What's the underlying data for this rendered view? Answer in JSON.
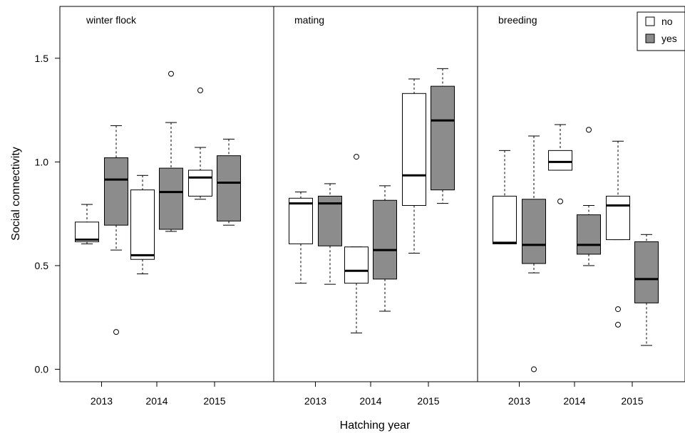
{
  "chart_data": {
    "type": "box",
    "xlabel": "Hatching year",
    "ylabel": "Social connectivity",
    "ylim": [
      -0.06,
      1.75
    ],
    "yticks": [
      "0.0",
      "0.5",
      "1.0",
      "1.5"
    ],
    "years": [
      "2013",
      "2014",
      "2015"
    ],
    "legend": {
      "position": "top-right",
      "items": [
        {
          "label": "no",
          "color": "#ffffff"
        },
        {
          "label": "yes",
          "color": "#8c8c8c"
        }
      ]
    },
    "panels": [
      {
        "label": "winter flock",
        "boxes": [
          {
            "year": "2013",
            "group": "no",
            "whisker_low": 0.605,
            "q1": 0.615,
            "median": 0.625,
            "q3": 0.71,
            "whisker_high": 0.795,
            "outliers": []
          },
          {
            "year": "2013",
            "group": "yes",
            "whisker_low": 0.575,
            "q1": 0.695,
            "median": 0.915,
            "q3": 1.02,
            "whisker_high": 1.175,
            "outliers": [
              0.18
            ]
          },
          {
            "year": "2014",
            "group": "no",
            "whisker_low": 0.46,
            "q1": 0.53,
            "median": 0.55,
            "q3": 0.865,
            "whisker_high": 0.935,
            "outliers": []
          },
          {
            "year": "2014",
            "group": "yes",
            "whisker_low": 0.665,
            "q1": 0.675,
            "median": 0.855,
            "q3": 0.97,
            "whisker_high": 1.19,
            "outliers": [
              1.425
            ]
          },
          {
            "year": "2015",
            "group": "no",
            "whisker_low": 0.82,
            "q1": 0.835,
            "median": 0.925,
            "q3": 0.96,
            "whisker_high": 1.07,
            "outliers": [
              1.345
            ]
          },
          {
            "year": "2015",
            "group": "yes",
            "whisker_low": 0.695,
            "q1": 0.715,
            "median": 0.9,
            "q3": 1.03,
            "whisker_high": 1.11,
            "outliers": []
          }
        ]
      },
      {
        "label": "mating",
        "boxes": [
          {
            "year": "2013",
            "group": "no",
            "whisker_low": 0.415,
            "q1": 0.605,
            "median": 0.8,
            "q3": 0.825,
            "whisker_high": 0.855,
            "outliers": []
          },
          {
            "year": "2013",
            "group": "yes",
            "whisker_low": 0.41,
            "q1": 0.595,
            "median": 0.8,
            "q3": 0.835,
            "whisker_high": 0.895,
            "outliers": []
          },
          {
            "year": "2014",
            "group": "no",
            "whisker_low": 0.175,
            "q1": 0.415,
            "median": 0.475,
            "q3": 0.59,
            "whisker_high": 0.59,
            "outliers": [
              1.025
            ]
          },
          {
            "year": "2014",
            "group": "yes",
            "whisker_low": 0.28,
            "q1": 0.435,
            "median": 0.575,
            "q3": 0.815,
            "whisker_high": 0.885,
            "outliers": []
          },
          {
            "year": "2015",
            "group": "no",
            "whisker_low": 0.56,
            "q1": 0.79,
            "median": 0.935,
            "q3": 1.33,
            "whisker_high": 1.4,
            "outliers": []
          },
          {
            "year": "2015",
            "group": "yes",
            "whisker_low": 0.8,
            "q1": 0.865,
            "median": 1.2,
            "q3": 1.365,
            "whisker_high": 1.45,
            "outliers": []
          }
        ]
      },
      {
        "label": "breeding",
        "boxes": [
          {
            "year": "2013",
            "group": "no",
            "whisker_low": 0.605,
            "q1": 0.605,
            "median": 0.61,
            "q3": 0.835,
            "whisker_high": 1.055,
            "outliers": []
          },
          {
            "year": "2013",
            "group": "yes",
            "whisker_low": 0.465,
            "q1": 0.51,
            "median": 0.6,
            "q3": 0.82,
            "whisker_high": 1.125,
            "outliers": [
              0.0
            ]
          },
          {
            "year": "2014",
            "group": "no",
            "whisker_low": 0.96,
            "q1": 0.96,
            "median": 1.0,
            "q3": 1.055,
            "whisker_high": 1.18,
            "outliers": [
              0.81
            ]
          },
          {
            "year": "2014",
            "group": "yes",
            "whisker_low": 0.5,
            "q1": 0.555,
            "median": 0.6,
            "q3": 0.745,
            "whisker_high": 0.79,
            "outliers": [
              1.155
            ]
          },
          {
            "year": "2015",
            "group": "no",
            "whisker_low": 0.625,
            "q1": 0.625,
            "median": 0.79,
            "q3": 0.835,
            "whisker_high": 1.1,
            "outliers": [
              0.29,
              0.215
            ]
          },
          {
            "year": "2015",
            "group": "yes",
            "whisker_low": 0.115,
            "q1": 0.32,
            "median": 0.435,
            "q3": 0.615,
            "whisker_high": 0.65,
            "outliers": []
          }
        ]
      }
    ]
  }
}
